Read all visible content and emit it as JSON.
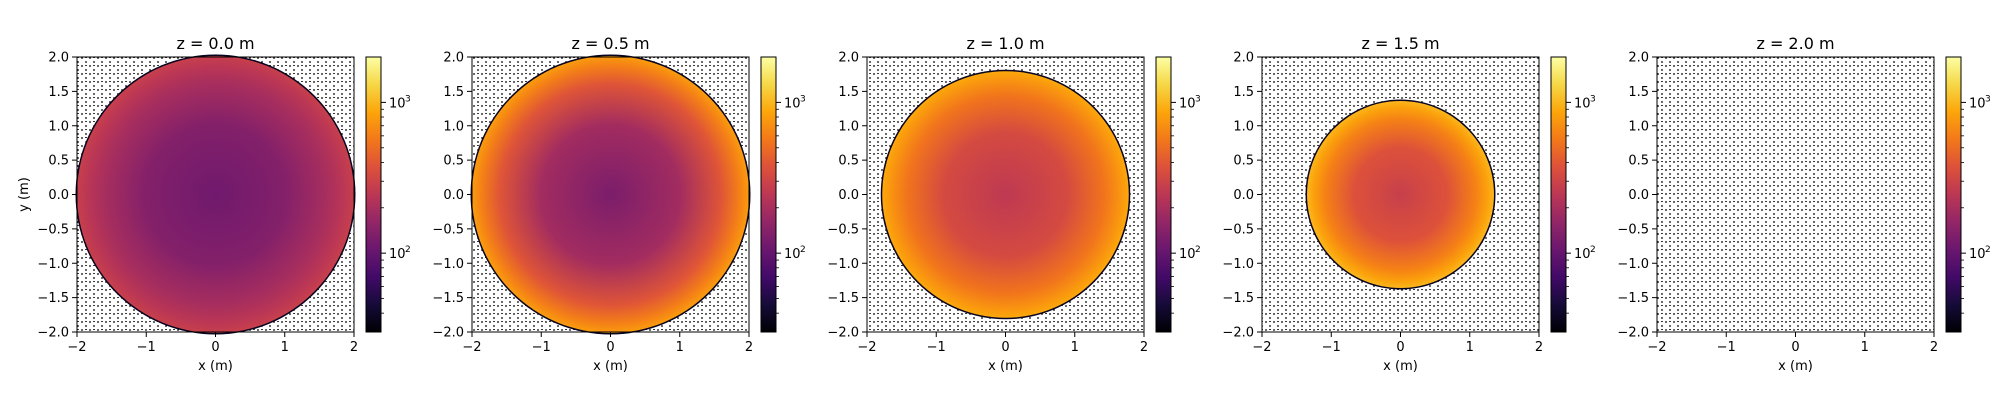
{
  "chart_data": [
    {
      "type": "heatmap",
      "title": "z = 0.0 m",
      "xlabel": "x (m)",
      "ylabel": "y (m)",
      "xlim": [
        -2,
        2
      ],
      "ylim": [
        -2,
        2
      ],
      "xticks": [
        "−2",
        "−1",
        "0",
        "1",
        "2"
      ],
      "yticks": [
        "2.0",
        "1.5",
        "1.0",
        "0.5",
        "0.0",
        "−0.5",
        "−1.0",
        "−1.5",
        "−2.0"
      ],
      "disk_radius": 2.0,
      "center_log10": 2.05,
      "edge_log10": 2.45,
      "colorbar": {
        "scale": "log",
        "range": [
          30,
          2000
        ],
        "ticks": [
          "10",
          "10"
        ],
        "exponents": [
          "3",
          "2"
        ],
        "tick_values": [
          1000,
          100
        ],
        "colormap": "inferno"
      }
    },
    {
      "type": "heatmap",
      "title": "z = 0.5 m",
      "xlabel": "x (m)",
      "ylabel": "",
      "xlim": [
        -2,
        2
      ],
      "ylim": [
        -2,
        2
      ],
      "xticks": [
        "−2",
        "−1",
        "0",
        "1",
        "2"
      ],
      "yticks": [
        "2.0",
        "1.5",
        "1.0",
        "0.5",
        "0.0",
        "−0.5",
        "−1.0",
        "−1.5",
        "−2.0"
      ],
      "disk_radius": 2.0,
      "center_log10": 2.1,
      "edge_log10": 2.9,
      "colorbar": {
        "scale": "log",
        "range": [
          30,
          2000
        ],
        "ticks": [
          "10",
          "10"
        ],
        "exponents": [
          "3",
          "2"
        ],
        "tick_values": [
          1000,
          100
        ],
        "colormap": "inferno"
      }
    },
    {
      "type": "heatmap",
      "title": "z = 1.0 m",
      "xlabel": "x (m)",
      "ylabel": "",
      "xlim": [
        -2,
        2
      ],
      "ylim": [
        -2,
        2
      ],
      "xticks": [
        "−2",
        "−1",
        "0",
        "1",
        "2"
      ],
      "yticks": [
        "2.0",
        "1.5",
        "1.0",
        "0.5",
        "0.0",
        "−0.5",
        "−1.0",
        "−1.5",
        "−2.0"
      ],
      "disk_radius": 1.78,
      "center_log10": 2.4,
      "edge_log10": 2.95,
      "colorbar": {
        "scale": "log",
        "range": [
          30,
          2000
        ],
        "ticks": [
          "10",
          "10"
        ],
        "exponents": [
          "3",
          "2"
        ],
        "tick_values": [
          1000,
          100
        ],
        "colormap": "inferno"
      }
    },
    {
      "type": "heatmap",
      "title": "z = 1.5 m",
      "xlabel": "x (m)",
      "ylabel": "",
      "xlim": [
        -2,
        2
      ],
      "ylim": [
        -2,
        2
      ],
      "xticks": [
        "−2",
        "−1",
        "0",
        "1",
        "2"
      ],
      "yticks": [
        "2.0",
        "1.5",
        "1.0",
        "0.5",
        "0.0",
        "−0.5",
        "−1.0",
        "−1.5",
        "−2.0"
      ],
      "disk_radius": 1.35,
      "center_log10": 2.45,
      "edge_log10": 3.0,
      "colorbar": {
        "scale": "log",
        "range": [
          30,
          2000
        ],
        "ticks": [
          "10",
          "10"
        ],
        "exponents": [
          "3",
          "2"
        ],
        "tick_values": [
          1000,
          100
        ],
        "colormap": "inferno"
      }
    },
    {
      "type": "heatmap",
      "title": "z = 2.0 m",
      "xlabel": "x (m)",
      "ylabel": "",
      "xlim": [
        -2,
        2
      ],
      "ylim": [
        -2,
        2
      ],
      "xticks": [
        "−2",
        "−1",
        "0",
        "1",
        "2"
      ],
      "yticks": [
        "2.0",
        "1.5",
        "1.0",
        "0.5",
        "0.0",
        "−0.5",
        "−1.0",
        "−1.5",
        "−2.0"
      ],
      "disk_radius": 0,
      "center_log10": 0,
      "edge_log10": 0,
      "colorbar": {
        "scale": "log",
        "range": [
          30,
          2000
        ],
        "ticks": [
          "10",
          "10"
        ],
        "exponents": [
          "3",
          "2"
        ],
        "tick_values": [
          1000,
          100
        ],
        "colormap": "inferno"
      }
    }
  ]
}
